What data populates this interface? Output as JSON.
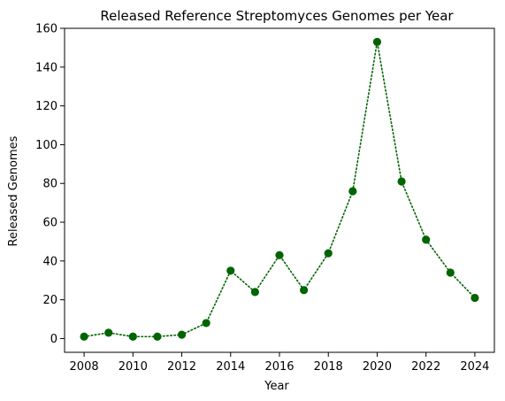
{
  "chart_data": {
    "type": "line",
    "title": "Released Reference Streptomyces Genomes per Year",
    "xlabel": "Year",
    "ylabel": "Released Genomes",
    "x": [
      2008,
      2009,
      2010,
      2011,
      2012,
      2013,
      2014,
      2015,
      2016,
      2017,
      2018,
      2019,
      2020,
      2021,
      2022,
      2023,
      2024
    ],
    "y": [
      1,
      3,
      1,
      1,
      2,
      8,
      35,
      24,
      43,
      25,
      44,
      76,
      153,
      81,
      51,
      34,
      21
    ],
    "xlim": [
      2007.2,
      2024.8
    ],
    "ylim": [
      -7.1,
      160
    ],
    "xticks": [
      "2008",
      "2010",
      "2012",
      "2014",
      "2016",
      "2018",
      "2020",
      "2022",
      "2024"
    ],
    "yticks": [
      "0",
      "20",
      "40",
      "60",
      "80",
      "100",
      "120",
      "140",
      "160"
    ],
    "line_style": "dotted",
    "marker": "circle",
    "color": "#006400",
    "grid": false,
    "legend": "none"
  }
}
